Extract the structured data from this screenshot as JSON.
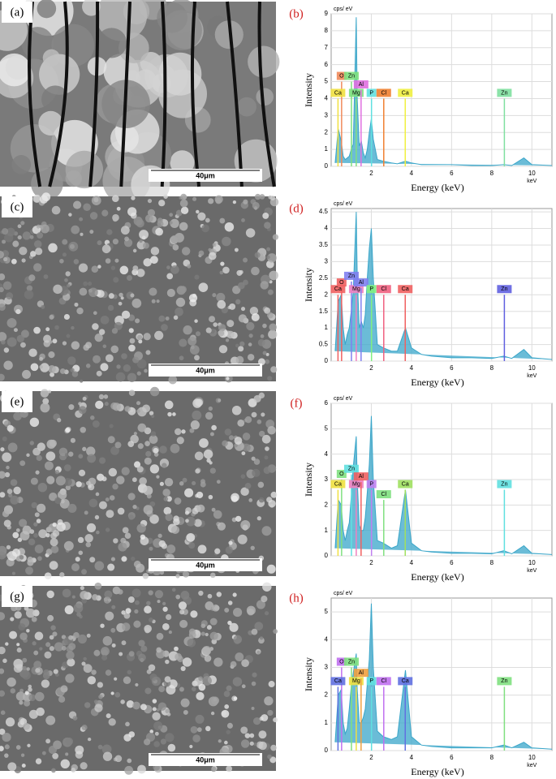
{
  "images": [
    {
      "label": "(a)",
      "scale_bar": "40μm"
    },
    {
      "label": "(c)",
      "scale_bar": "40μm"
    },
    {
      "label": "(e)",
      "scale_bar": "40μm"
    },
    {
      "label": "(g)",
      "scale_bar": "40μm"
    }
  ],
  "chart_data": [
    {
      "type": "area",
      "label": "(b)",
      "y_unit": "cps/ eV",
      "ylabel": "Intensity",
      "xlabel": "Energy (keV)",
      "x_unit": "keV",
      "color": "#3aa6c9",
      "x": [
        0.2,
        0.35,
        0.5,
        0.6,
        0.7,
        0.8,
        0.9,
        1.0,
        1.1,
        1.25,
        1.3,
        1.4,
        1.5,
        1.6,
        1.7,
        1.8,
        1.9,
        2.0,
        2.1,
        2.3,
        2.6,
        3.0,
        3.3,
        3.7,
        4.0,
        4.5,
        5,
        6,
        7,
        8,
        8.6,
        9,
        9.6,
        10,
        11
      ],
      "values": [
        0.2,
        2.2,
        1.5,
        0.6,
        0.4,
        0.5,
        0.6,
        1.0,
        1.3,
        8.8,
        4.0,
        1.2,
        1.5,
        0.8,
        0.5,
        1.0,
        2.0,
        2.8,
        1.6,
        0.4,
        0.3,
        0.2,
        0.15,
        0.3,
        0.2,
        0.1,
        0.1,
        0.1,
        0.05,
        0.05,
        0.1,
        0.05,
        0.5,
        0.1,
        0.05
      ],
      "peaks": [
        {
          "label": "O",
          "x": 0.52,
          "y": 5,
          "color": "#f08a5a"
        },
        {
          "label": "Ca",
          "x": 0.34,
          "y": 4,
          "color": "#f0e040"
        },
        {
          "label": "Zn",
          "x": 1.01,
          "y": 5,
          "color": "#7ee07e"
        },
        {
          "label": "Mg",
          "x": 1.25,
          "y": 4,
          "color": "#80e080"
        },
        {
          "label": "Al",
          "x": 1.49,
          "y": 4.5,
          "color": "#e070e0"
        },
        {
          "label": "P",
          "x": 2.01,
          "y": 4,
          "color": "#60e0e0"
        },
        {
          "label": "Cl",
          "x": 2.62,
          "y": 4,
          "color": "#f08030"
        },
        {
          "label": "Ca",
          "x": 3.69,
          "y": 4,
          "color": "#f0f040"
        },
        {
          "label": "Zn",
          "x": 8.63,
          "y": 4,
          "color": "#80e0a0"
        }
      ],
      "xlim": [
        0,
        11
      ],
      "ylim": [
        0,
        9
      ],
      "xticks": [
        2,
        4,
        6,
        8,
        10
      ],
      "yticks": [
        0,
        1,
        2,
        3,
        4,
        5,
        6,
        7,
        8,
        9
      ],
      "grid": true
    },
    {
      "type": "area",
      "label": "(d)",
      "y_unit": "cps/ eV",
      "ylabel": "Intensity",
      "xlabel": "Energy (keV)",
      "x_unit": "keV",
      "color": "#3aa6c9",
      "x": [
        0.2,
        0.35,
        0.5,
        0.6,
        0.7,
        0.8,
        0.9,
        1.0,
        1.1,
        1.25,
        1.3,
        1.4,
        1.5,
        1.6,
        1.7,
        1.8,
        1.9,
        2.0,
        2.1,
        2.3,
        2.6,
        3.0,
        3.3,
        3.7,
        4.0,
        4.5,
        5,
        6,
        7,
        8,
        8.6,
        9,
        9.6,
        10,
        11
      ],
      "values": [
        0.3,
        1.8,
        2.0,
        1.0,
        0.5,
        0.8,
        1.0,
        1.5,
        2.1,
        4.5,
        2.6,
        1.0,
        1.2,
        1.0,
        1.4,
        2.5,
        3.4,
        4.0,
        2.5,
        0.5,
        0.4,
        0.3,
        0.3,
        1.0,
        0.4,
        0.2,
        0.15,
        0.1,
        0.1,
        0.08,
        0.15,
        0.08,
        0.35,
        0.1,
        0.05
      ],
      "peaks": [
        {
          "label": "O",
          "x": 0.52,
          "y": 2.2,
          "color": "#f06060"
        },
        {
          "label": "Ca",
          "x": 0.34,
          "y": 2,
          "color": "#f06060"
        },
        {
          "label": "Zn",
          "x": 1.01,
          "y": 2.4,
          "color": "#8080f0"
        },
        {
          "label": "Mg",
          "x": 1.25,
          "y": 2,
          "color": "#f080c0"
        },
        {
          "label": "Al",
          "x": 1.49,
          "y": 2.2,
          "color": "#8080f0"
        },
        {
          "label": "P",
          "x": 2.01,
          "y": 2,
          "color": "#80f080"
        },
        {
          "label": "Cl",
          "x": 2.62,
          "y": 2,
          "color": "#f06080"
        },
        {
          "label": "Ca",
          "x": 3.69,
          "y": 2,
          "color": "#f06060"
        },
        {
          "label": "Zn",
          "x": 8.63,
          "y": 2,
          "color": "#6060e0"
        }
      ],
      "xlim": [
        0,
        11
      ],
      "ylim": [
        0,
        4.6
      ],
      "xticks": [
        2,
        4,
        6,
        8,
        10
      ],
      "yticks": [
        0,
        0.5,
        1,
        1.5,
        2,
        2.5,
        3,
        3.5,
        4,
        4.5
      ],
      "grid": true
    },
    {
      "type": "area",
      "label": "(f)",
      "y_unit": "cps/ eV",
      "ylabel": "Intensity",
      "xlabel": "Energy (keV)",
      "x_unit": "keV",
      "color": "#3aa6c9",
      "x": [
        0.2,
        0.35,
        0.5,
        0.6,
        0.7,
        0.8,
        0.9,
        1.0,
        1.1,
        1.25,
        1.3,
        1.4,
        1.5,
        1.6,
        1.7,
        1.8,
        1.9,
        2.0,
        2.1,
        2.3,
        2.6,
        3.0,
        3.3,
        3.7,
        4.0,
        4.5,
        5,
        6,
        7,
        8,
        8.6,
        9,
        9.6,
        10,
        11
      ],
      "values": [
        0.3,
        2.2,
        2.0,
        1.0,
        0.6,
        1.0,
        1.3,
        2.3,
        3.5,
        4.7,
        3.0,
        1.2,
        1.0,
        1.0,
        1.5,
        2.5,
        3.6,
        5.5,
        3.0,
        0.6,
        0.5,
        0.3,
        0.4,
        2.6,
        0.5,
        0.2,
        0.15,
        0.1,
        0.1,
        0.08,
        0.2,
        0.08,
        0.4,
        0.1,
        0.05
      ],
      "peaks": [
        {
          "label": "O",
          "x": 0.52,
          "y": 3,
          "color": "#80e080"
        },
        {
          "label": "Ca",
          "x": 0.34,
          "y": 2.6,
          "color": "#f0e040"
        },
        {
          "label": "Zn",
          "x": 1.01,
          "y": 3.2,
          "color": "#60e0e0"
        },
        {
          "label": "Mg",
          "x": 1.25,
          "y": 2.6,
          "color": "#f080c0"
        },
        {
          "label": "Al",
          "x": 1.49,
          "y": 2.9,
          "color": "#f06060"
        },
        {
          "label": "P",
          "x": 2.01,
          "y": 2.6,
          "color": "#c080f0"
        },
        {
          "label": "Cl",
          "x": 2.62,
          "y": 2.2,
          "color": "#80e080"
        },
        {
          "label": "Ca",
          "x": 3.69,
          "y": 2.6,
          "color": "#a0e060"
        },
        {
          "label": "Zn",
          "x": 8.63,
          "y": 2.6,
          "color": "#60e0e0"
        }
      ],
      "xlim": [
        0,
        11
      ],
      "ylim": [
        0,
        6
      ],
      "xticks": [
        2,
        4,
        6,
        8,
        10
      ],
      "yticks": [
        0,
        1,
        2,
        3,
        4,
        5,
        6
      ],
      "grid": true
    },
    {
      "type": "area",
      "label": "(h)",
      "y_unit": "cps/ eV",
      "ylabel": "Intensity",
      "xlabel": "Energy (keV)",
      "x_unit": "keV",
      "color": "#3aa6c9",
      "x": [
        0.2,
        0.35,
        0.5,
        0.6,
        0.7,
        0.8,
        0.9,
        1.0,
        1.1,
        1.25,
        1.3,
        1.4,
        1.5,
        1.6,
        1.7,
        1.8,
        1.9,
        2.0,
        2.1,
        2.3,
        2.6,
        3.0,
        3.3,
        3.7,
        4.0,
        4.5,
        5,
        6,
        7,
        8,
        8.6,
        9,
        9.6,
        10,
        11
      ],
      "values": [
        0.3,
        2.0,
        2.2,
        1.0,
        0.6,
        0.8,
        1.5,
        2.3,
        2.8,
        3.5,
        2.2,
        1.0,
        1.0,
        1.2,
        1.5,
        2.4,
        3.3,
        5.3,
        3.0,
        0.7,
        0.5,
        0.4,
        0.5,
        2.9,
        0.5,
        0.2,
        0.15,
        0.1,
        0.1,
        0.1,
        0.2,
        0.1,
        0.3,
        0.1,
        0.05
      ],
      "peaks": [
        {
          "label": "O",
          "x": 0.52,
          "y": 3,
          "color": "#c070f0"
        },
        {
          "label": "Ca",
          "x": 0.34,
          "y": 2.3,
          "color": "#6070e0"
        },
        {
          "label": "Zn",
          "x": 1.01,
          "y": 3,
          "color": "#80e080"
        },
        {
          "label": "Mg",
          "x": 1.25,
          "y": 2.3,
          "color": "#f0e040"
        },
        {
          "label": "Al",
          "x": 1.49,
          "y": 2.6,
          "color": "#f0a040"
        },
        {
          "label": "P",
          "x": 2.01,
          "y": 2.3,
          "color": "#60e0e0"
        },
        {
          "label": "Cl",
          "x": 2.62,
          "y": 2.3,
          "color": "#c070f0"
        },
        {
          "label": "Ca",
          "x": 3.69,
          "y": 2.3,
          "color": "#6070e0"
        },
        {
          "label": "Zn",
          "x": 8.63,
          "y": 2.3,
          "color": "#80e080"
        }
      ],
      "xlim": [
        0,
        11
      ],
      "ylim": [
        0,
        5.5
      ],
      "xticks": [
        2,
        4,
        6,
        8,
        10
      ],
      "yticks": [
        0,
        1,
        2,
        3,
        4,
        5
      ],
      "grid": true
    }
  ]
}
